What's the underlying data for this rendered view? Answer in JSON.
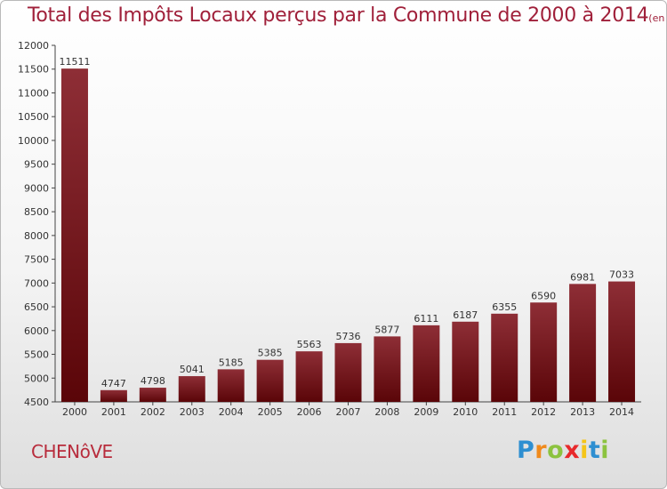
{
  "chart_data": {
    "type": "bar",
    "title": "Total des Impôts Locaux perçus par la Commune de 2000 à 2014",
    "unit": "(en milliers d'€)",
    "categories": [
      "2000",
      "2001",
      "2002",
      "2003",
      "2004",
      "2005",
      "2006",
      "2007",
      "2008",
      "2009",
      "2010",
      "2011",
      "2012",
      "2013",
      "2014"
    ],
    "values": [
      11511,
      4747,
      4798,
      5041,
      5185,
      5385,
      5563,
      5736,
      5877,
      6111,
      6187,
      6355,
      6590,
      6981,
      7033
    ],
    "ylim": [
      4500,
      12000
    ],
    "yticks": [
      4500,
      5000,
      5500,
      6000,
      6500,
      7000,
      7500,
      8000,
      8500,
      9000,
      9500,
      10000,
      10500,
      11000,
      11500,
      12000
    ],
    "xlabel": "",
    "ylabel": "",
    "grid": false,
    "bar_color": "#7a1a22"
  },
  "footer": {
    "commune": "CHENôVE",
    "logo": {
      "letters": [
        "P",
        "r",
        "o",
        "x",
        "i",
        "t",
        "i"
      ],
      "colors": [
        "#2e8fd1",
        "#f08a1c",
        "#8cc33f",
        "#e8292b",
        "#f5c518",
        "#2e8fd1",
        "#8cc33f"
      ]
    }
  }
}
